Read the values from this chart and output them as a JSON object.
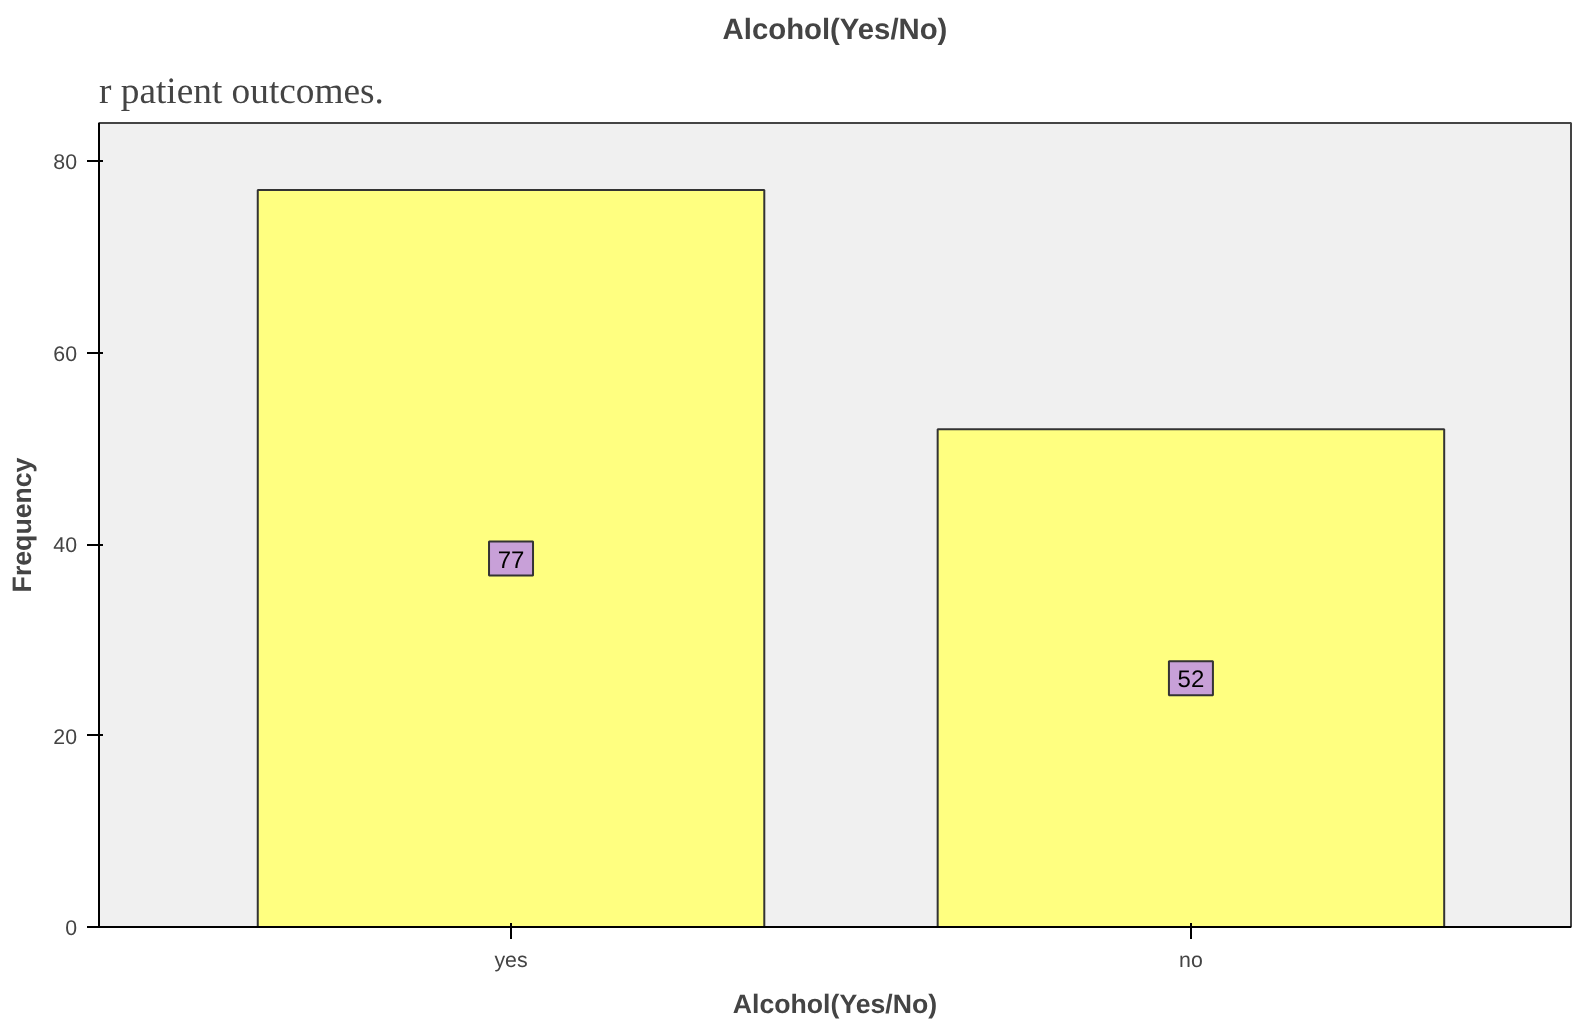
{
  "chart_data": {
    "type": "bar",
    "title": "Alcohol(Yes/No)",
    "xlabel": "Alcohol(Yes/No)",
    "ylabel": "Frequency",
    "categories": [
      "yes",
      "no"
    ],
    "values": [
      77,
      52
    ],
    "color": "#ffff80",
    "ylim": [
      0,
      84
    ],
    "yticks": [
      0,
      20,
      40,
      60,
      80
    ],
    "grid": false,
    "data_labels": true,
    "annotations": [
      "r patient outcomes."
    ]
  }
}
